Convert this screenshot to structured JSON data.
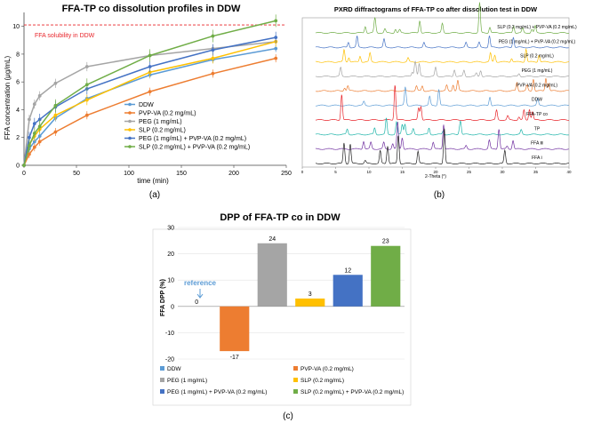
{
  "chart_data": [
    {
      "type": "line",
      "panel_label": "(a)",
      "title": "FFA-TP co dissolution profiles in DDW",
      "xlabel": "time (min)",
      "ylabel": "FFA concentration (μg/mL)",
      "xlim": [
        0,
        250
      ],
      "ylim": [
        0,
        11
      ],
      "xticks": [
        "0",
        "50",
        "100",
        "150",
        "200",
        "250"
      ],
      "yticks": [
        "0",
        "2",
        "4",
        "6",
        "8",
        "10"
      ],
      "reference_line": {
        "value": 10.1,
        "label": "FFA solubility in DDW",
        "color": "#e8242a"
      },
      "x": [
        0,
        5,
        10,
        15,
        30,
        60,
        120,
        180,
        240
      ],
      "series": [
        {
          "name": "DDW",
          "color": "#5b9bd5",
          "values": [
            0,
            1.2,
            1.7,
            2.1,
            3.4,
            4.8,
            6.5,
            7.6,
            8.4
          ]
        },
        {
          "name": "PVP-VA (0.2 mg/mL)",
          "color": "#ed7d31",
          "values": [
            0,
            0.8,
            1.3,
            1.7,
            2.4,
            3.6,
            5.3,
            6.6,
            7.7
          ]
        },
        {
          "name": "PEG (1 mg/mL)",
          "color": "#a5a5a5",
          "values": [
            0,
            3.3,
            4.4,
            5.0,
            5.9,
            7.1,
            7.9,
            8.4,
            8.9
          ]
        },
        {
          "name": "SLP (0.2 mg/mL)",
          "color": "#ffc000",
          "values": [
            0,
            1.5,
            2.1,
            2.6,
            3.6,
            4.7,
            6.7,
            7.7,
            8.9
          ]
        },
        {
          "name": "PEG (1 mg/mL) + PVP-VA (0.2 mg/mL)",
          "color": "#4472c4",
          "values": [
            0,
            2.0,
            3.0,
            3.3,
            4.2,
            5.5,
            7.1,
            8.3,
            9.2
          ]
        },
        {
          "name": "SLP (0.2 mg/mL) + PVP-VA (0.2 mg/mL)",
          "color": "#70ad47",
          "values": [
            0,
            1.4,
            2.3,
            2.8,
            4.3,
            5.8,
            7.9,
            9.3,
            10.4
          ]
        }
      ]
    },
    {
      "type": "line",
      "panel_label": "(b)",
      "title": "PXRD diffractograms of FFA-TP co after dissolution test in DDW",
      "xlabel": "2-Theta (°)",
      "xlim": [
        0,
        40
      ],
      "xticks": [
        "0",
        "5",
        "10",
        "15",
        "20",
        "25",
        "30",
        "35",
        "40"
      ],
      "traces": [
        {
          "name": "SLP (0.2 mg/mL) + PVP-VA (0.2 mg/mL)",
          "color": "#70ad47"
        },
        {
          "name": "PEG (1 mg/mL) + PVP-VA (0.2 mg/mL)",
          "color": "#4472c4"
        },
        {
          "name": "SLP (0.2 mg/mL)",
          "color": "#ffc000"
        },
        {
          "name": "PEG (1 mg/mL)",
          "color": "#a5a5a5"
        },
        {
          "name": "PVP-VA (0.2 mg/mL)",
          "color": "#ed7d31"
        },
        {
          "name": "DDW",
          "color": "#5b9bd5"
        },
        {
          "name": "FFA-TP co",
          "color": "#e8242a"
        },
        {
          "name": "TP",
          "color": "#1bb3a8"
        },
        {
          "name": "FFA Ⅲ",
          "color": "#7030a0"
        },
        {
          "name": "FFA Ⅰ",
          "color": "#222222"
        }
      ]
    },
    {
      "type": "bar",
      "panel_label": "(c)",
      "title": "DPP of FFA-TP co in DDW",
      "ylabel": "FFA DPP (%)",
      "ylim": [
        -20,
        30
      ],
      "yticks": [
        "-20",
        "-10",
        "0",
        "10",
        "20",
        "30"
      ],
      "annotation": "reference",
      "categories": [
        "DDW",
        "PVP-VA (0.2 mg/mL)",
        "PEG (1 mg/mL)",
        "SLP (0.2 mg/mL)",
        "PEG (1 mg/mL) + PVP-VA (0.2 mg/mL)",
        "SLP (0.2 mg/mL) + PVP-VA (0.2 mg/mL)"
      ],
      "values": [
        0,
        -17,
        24,
        3,
        12,
        23
      ],
      "labels": [
        "0",
        "-17",
        "24",
        "3",
        "12",
        "23"
      ],
      "colors": [
        "#5b9bd5",
        "#ed7d31",
        "#a5a5a5",
        "#ffc000",
        "#4472c4",
        "#70ad47"
      ]
    }
  ]
}
